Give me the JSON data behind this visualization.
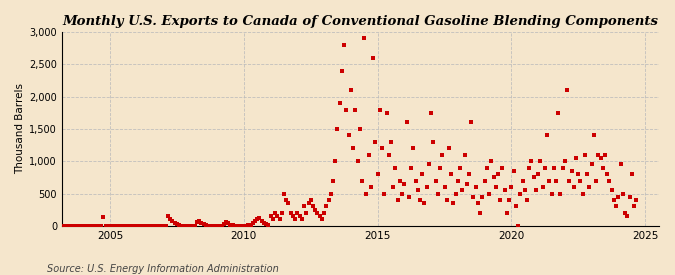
{
  "title": "Monthly U.S. Exports to Canada of Conventional Gasoline Blending Components",
  "ylabel": "Thousand Barrels",
  "source": "Source: U.S. Energy Information Administration",
  "background_color": "#f5e6cc",
  "marker_color": "#cc0000",
  "grid_color": "#bbbbbb",
  "ylim": [
    0,
    3000
  ],
  "yticks": [
    0,
    500,
    1000,
    1500,
    2000,
    2500,
    3000
  ],
  "ytick_labels": [
    "0",
    "500",
    "1,000",
    "1,500",
    "2,000",
    "2,500",
    "3,000"
  ],
  "xticks": [
    2005,
    2010,
    2015,
    2020,
    2025
  ],
  "xlim": [
    2003.2,
    2025.5
  ],
  "data": [
    [
      2003.0,
      0
    ],
    [
      2003.083,
      0
    ],
    [
      2003.167,
      0
    ],
    [
      2003.25,
      0
    ],
    [
      2003.333,
      0
    ],
    [
      2003.417,
      0
    ],
    [
      2003.5,
      0
    ],
    [
      2003.583,
      0
    ],
    [
      2003.667,
      0
    ],
    [
      2003.75,
      0
    ],
    [
      2003.833,
      0
    ],
    [
      2003.917,
      0
    ],
    [
      2004.0,
      5
    ],
    [
      2004.083,
      0
    ],
    [
      2004.167,
      0
    ],
    [
      2004.25,
      0
    ],
    [
      2004.333,
      0
    ],
    [
      2004.417,
      0
    ],
    [
      2004.5,
      0
    ],
    [
      2004.583,
      0
    ],
    [
      2004.667,
      0
    ],
    [
      2004.75,
      130
    ],
    [
      2004.833,
      0
    ],
    [
      2004.917,
      0
    ],
    [
      2005.0,
      0
    ],
    [
      2005.083,
      0
    ],
    [
      2005.167,
      0
    ],
    [
      2005.25,
      0
    ],
    [
      2005.333,
      0
    ],
    [
      2005.417,
      0
    ],
    [
      2005.5,
      0
    ],
    [
      2005.583,
      0
    ],
    [
      2005.667,
      0
    ],
    [
      2005.75,
      0
    ],
    [
      2005.833,
      0
    ],
    [
      2005.917,
      0
    ],
    [
      2006.0,
      0
    ],
    [
      2006.083,
      0
    ],
    [
      2006.167,
      0
    ],
    [
      2006.25,
      0
    ],
    [
      2006.333,
      0
    ],
    [
      2006.417,
      0
    ],
    [
      2006.5,
      0
    ],
    [
      2006.583,
      0
    ],
    [
      2006.667,
      0
    ],
    [
      2006.75,
      0
    ],
    [
      2006.833,
      0
    ],
    [
      2006.917,
      0
    ],
    [
      2007.0,
      0
    ],
    [
      2007.083,
      0
    ],
    [
      2007.167,
      150
    ],
    [
      2007.25,
      100
    ],
    [
      2007.333,
      80
    ],
    [
      2007.417,
      50
    ],
    [
      2007.5,
      30
    ],
    [
      2007.583,
      10
    ],
    [
      2007.667,
      5
    ],
    [
      2007.75,
      0
    ],
    [
      2007.833,
      0
    ],
    [
      2007.917,
      0
    ],
    [
      2008.0,
      0
    ],
    [
      2008.083,
      0
    ],
    [
      2008.167,
      0
    ],
    [
      2008.25,
      60
    ],
    [
      2008.333,
      80
    ],
    [
      2008.417,
      50
    ],
    [
      2008.5,
      30
    ],
    [
      2008.583,
      10
    ],
    [
      2008.667,
      0
    ],
    [
      2008.75,
      0
    ],
    [
      2008.833,
      0
    ],
    [
      2008.917,
      0
    ],
    [
      2009.0,
      0
    ],
    [
      2009.083,
      0
    ],
    [
      2009.167,
      0
    ],
    [
      2009.25,
      30
    ],
    [
      2009.333,
      60
    ],
    [
      2009.417,
      50
    ],
    [
      2009.5,
      20
    ],
    [
      2009.583,
      10
    ],
    [
      2009.667,
      0
    ],
    [
      2009.75,
      0
    ],
    [
      2009.833,
      0
    ],
    [
      2009.917,
      0
    ],
    [
      2010.0,
      0
    ],
    [
      2010.083,
      5
    ],
    [
      2010.167,
      10
    ],
    [
      2010.25,
      20
    ],
    [
      2010.333,
      50
    ],
    [
      2010.417,
      80
    ],
    [
      2010.5,
      100
    ],
    [
      2010.583,
      120
    ],
    [
      2010.667,
      80
    ],
    [
      2010.75,
      50
    ],
    [
      2010.833,
      30
    ],
    [
      2010.917,
      20
    ],
    [
      2011.0,
      150
    ],
    [
      2011.083,
      100
    ],
    [
      2011.167,
      200
    ],
    [
      2011.25,
      150
    ],
    [
      2011.333,
      100
    ],
    [
      2011.417,
      200
    ],
    [
      2011.5,
      500
    ],
    [
      2011.583,
      400
    ],
    [
      2011.667,
      350
    ],
    [
      2011.75,
      200
    ],
    [
      2011.833,
      150
    ],
    [
      2011.917,
      100
    ],
    [
      2012.0,
      200
    ],
    [
      2012.083,
      150
    ],
    [
      2012.167,
      100
    ],
    [
      2012.25,
      300
    ],
    [
      2012.333,
      200
    ],
    [
      2012.417,
      350
    ],
    [
      2012.5,
      400
    ],
    [
      2012.583,
      300
    ],
    [
      2012.667,
      250
    ],
    [
      2012.75,
      200
    ],
    [
      2012.833,
      150
    ],
    [
      2012.917,
      100
    ],
    [
      2013.0,
      200
    ],
    [
      2013.083,
      300
    ],
    [
      2013.167,
      400
    ],
    [
      2013.25,
      500
    ],
    [
      2013.333,
      700
    ],
    [
      2013.417,
      1000
    ],
    [
      2013.5,
      1500
    ],
    [
      2013.583,
      1900
    ],
    [
      2013.667,
      2400
    ],
    [
      2013.75,
      2800
    ],
    [
      2013.833,
      1800
    ],
    [
      2013.917,
      1400
    ],
    [
      2014.0,
      2100
    ],
    [
      2014.083,
      1200
    ],
    [
      2014.167,
      1800
    ],
    [
      2014.25,
      1000
    ],
    [
      2014.333,
      1500
    ],
    [
      2014.417,
      700
    ],
    [
      2014.5,
      2900
    ],
    [
      2014.583,
      500
    ],
    [
      2014.667,
      1100
    ],
    [
      2014.75,
      600
    ],
    [
      2014.833,
      2600
    ],
    [
      2014.917,
      1300
    ],
    [
      2015.0,
      800
    ],
    [
      2015.083,
      1800
    ],
    [
      2015.167,
      1200
    ],
    [
      2015.25,
      500
    ],
    [
      2015.333,
      1750
    ],
    [
      2015.417,
      1100
    ],
    [
      2015.5,
      1300
    ],
    [
      2015.583,
      600
    ],
    [
      2015.667,
      900
    ],
    [
      2015.75,
      400
    ],
    [
      2015.833,
      700
    ],
    [
      2015.917,
      500
    ],
    [
      2016.0,
      650
    ],
    [
      2016.083,
      1600
    ],
    [
      2016.167,
      450
    ],
    [
      2016.25,
      900
    ],
    [
      2016.333,
      1200
    ],
    [
      2016.417,
      700
    ],
    [
      2016.5,
      550
    ],
    [
      2016.583,
      400
    ],
    [
      2016.667,
      800
    ],
    [
      2016.75,
      350
    ],
    [
      2016.833,
      600
    ],
    [
      2016.917,
      950
    ],
    [
      2017.0,
      1750
    ],
    [
      2017.083,
      1300
    ],
    [
      2017.167,
      700
    ],
    [
      2017.25,
      500
    ],
    [
      2017.333,
      900
    ],
    [
      2017.417,
      1100
    ],
    [
      2017.5,
      600
    ],
    [
      2017.583,
      400
    ],
    [
      2017.667,
      1200
    ],
    [
      2017.75,
      800
    ],
    [
      2017.833,
      350
    ],
    [
      2017.917,
      500
    ],
    [
      2018.0,
      700
    ],
    [
      2018.083,
      900
    ],
    [
      2018.167,
      550
    ],
    [
      2018.25,
      1100
    ],
    [
      2018.333,
      650
    ],
    [
      2018.417,
      800
    ],
    [
      2018.5,
      1600
    ],
    [
      2018.583,
      450
    ],
    [
      2018.667,
      600
    ],
    [
      2018.75,
      350
    ],
    [
      2018.833,
      200
    ],
    [
      2018.917,
      450
    ],
    [
      2019.0,
      700
    ],
    [
      2019.083,
      900
    ],
    [
      2019.167,
      500
    ],
    [
      2019.25,
      1000
    ],
    [
      2019.333,
      750
    ],
    [
      2019.417,
      600
    ],
    [
      2019.5,
      800
    ],
    [
      2019.583,
      400
    ],
    [
      2019.667,
      900
    ],
    [
      2019.75,
      550
    ],
    [
      2019.833,
      200
    ],
    [
      2019.917,
      400
    ],
    [
      2020.0,
      600
    ],
    [
      2020.083,
      850
    ],
    [
      2020.167,
      300
    ],
    [
      2020.25,
      0
    ],
    [
      2020.333,
      500
    ],
    [
      2020.417,
      700
    ],
    [
      2020.5,
      550
    ],
    [
      2020.583,
      400
    ],
    [
      2020.667,
      900
    ],
    [
      2020.75,
      1000
    ],
    [
      2020.833,
      750
    ],
    [
      2020.917,
      550
    ],
    [
      2021.0,
      800
    ],
    [
      2021.083,
      1000
    ],
    [
      2021.167,
      600
    ],
    [
      2021.25,
      900
    ],
    [
      2021.333,
      1400
    ],
    [
      2021.417,
      700
    ],
    [
      2021.5,
      500
    ],
    [
      2021.583,
      900
    ],
    [
      2021.667,
      700
    ],
    [
      2021.75,
      1750
    ],
    [
      2021.833,
      500
    ],
    [
      2021.917,
      900
    ],
    [
      2022.0,
      1000
    ],
    [
      2022.083,
      2100
    ],
    [
      2022.167,
      700
    ],
    [
      2022.25,
      850
    ],
    [
      2022.333,
      600
    ],
    [
      2022.417,
      1050
    ],
    [
      2022.5,
      800
    ],
    [
      2022.583,
      700
    ],
    [
      2022.667,
      500
    ],
    [
      2022.75,
      1100
    ],
    [
      2022.833,
      800
    ],
    [
      2022.917,
      600
    ],
    [
      2023.0,
      950
    ],
    [
      2023.083,
      1400
    ],
    [
      2023.167,
      700
    ],
    [
      2023.25,
      1100
    ],
    [
      2023.333,
      1050
    ],
    [
      2023.417,
      900
    ],
    [
      2023.5,
      1100
    ],
    [
      2023.583,
      800
    ],
    [
      2023.667,
      700
    ],
    [
      2023.75,
      550
    ],
    [
      2023.833,
      400
    ],
    [
      2023.917,
      300
    ],
    [
      2024.0,
      450
    ],
    [
      2024.083,
      950
    ],
    [
      2024.167,
      500
    ],
    [
      2024.25,
      200
    ],
    [
      2024.333,
      150
    ],
    [
      2024.417,
      450
    ],
    [
      2024.5,
      800
    ],
    [
      2024.583,
      300
    ],
    [
      2024.667,
      400
    ]
  ]
}
